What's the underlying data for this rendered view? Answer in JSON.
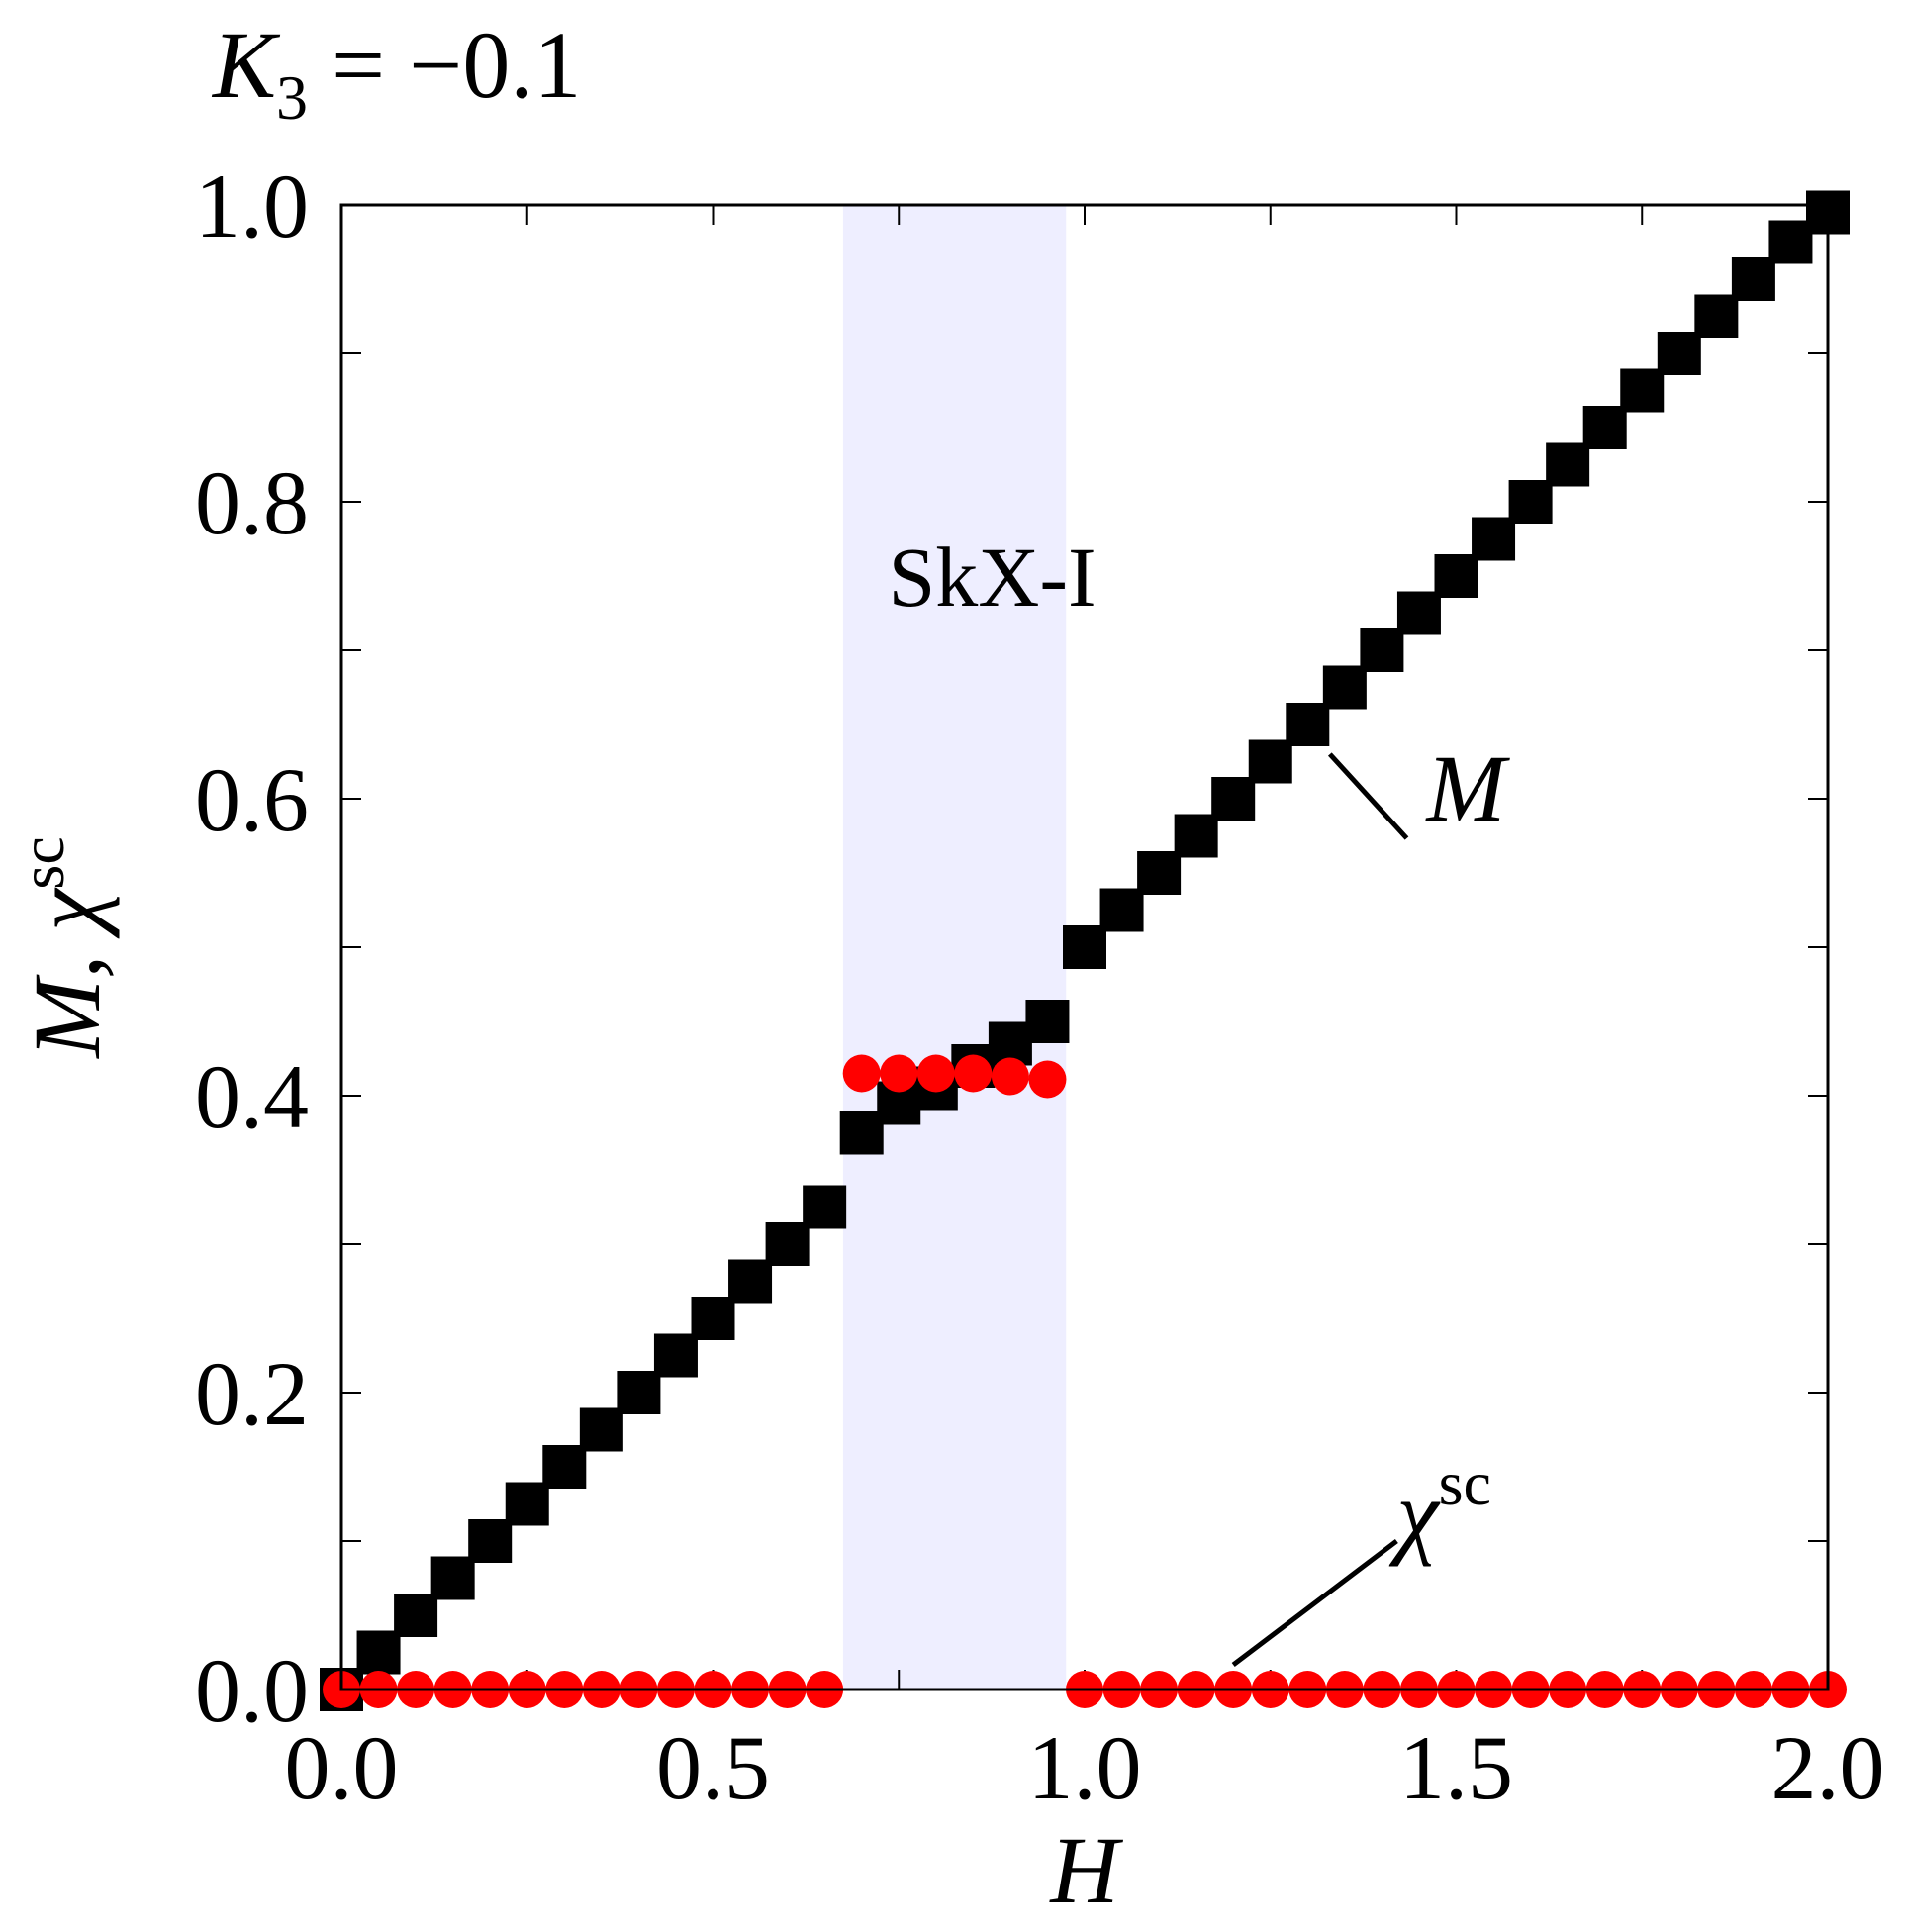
{
  "header": {
    "param_symbol": "K",
    "param_sub": "3",
    "param_eq": " = −0.1"
  },
  "chart_data": {
    "type": "scatter",
    "xlabel": "H",
    "ylabel": {
      "main": "M, χ",
      "sup": "sc"
    },
    "xlim": [
      0.0,
      2.0
    ],
    "ylim": [
      0.0,
      1.0
    ],
    "xticks": [
      "0.0",
      "0.5",
      "1.0",
      "1.5",
      "2.0"
    ],
    "yticks": [
      "0.0",
      "0.2",
      "0.4",
      "0.6",
      "0.8",
      "1.0"
    ],
    "grid": false,
    "region": {
      "label": "SkX-I",
      "x0": 0.675,
      "x1": 0.975,
      "color": "#eeeeff"
    },
    "series": [
      {
        "name": "M",
        "marker": "square",
        "color": "#000000",
        "x": [
          0.0,
          0.05,
          0.1,
          0.15,
          0.2,
          0.25,
          0.3,
          0.35,
          0.4,
          0.45,
          0.5,
          0.55,
          0.6,
          0.65,
          0.7,
          0.75,
          0.8,
          0.85,
          0.9,
          0.95,
          1.0,
          1.05,
          1.1,
          1.15,
          1.2,
          1.25,
          1.3,
          1.35,
          1.4,
          1.45,
          1.5,
          1.55,
          1.6,
          1.65,
          1.7,
          1.75,
          1.8,
          1.85,
          1.9,
          1.95,
          2.0
        ],
        "y": [
          0.0,
          0.025,
          0.05,
          0.075,
          0.1,
          0.125,
          0.15,
          0.175,
          0.2,
          0.225,
          0.25,
          0.275,
          0.3,
          0.325,
          0.375,
          0.395,
          0.405,
          0.42,
          0.435,
          0.45,
          0.5,
          0.525,
          0.55,
          0.575,
          0.6,
          0.625,
          0.65,
          0.675,
          0.7,
          0.725,
          0.75,
          0.775,
          0.8,
          0.825,
          0.85,
          0.875,
          0.9,
          0.925,
          0.95,
          0.975,
          0.995
        ]
      },
      {
        "name": "χ",
        "name_sup": "sc",
        "marker": "circle",
        "color": "#ff0000",
        "x": [
          0.0,
          0.05,
          0.1,
          0.15,
          0.2,
          0.25,
          0.3,
          0.35,
          0.4,
          0.45,
          0.5,
          0.55,
          0.6,
          0.65,
          0.7,
          0.75,
          0.8,
          0.85,
          0.9,
          0.95,
          1.0,
          1.05,
          1.1,
          1.15,
          1.2,
          1.25,
          1.3,
          1.35,
          1.4,
          1.45,
          1.5,
          1.55,
          1.6,
          1.65,
          1.7,
          1.75,
          1.8,
          1.85,
          1.9,
          1.95,
          2.0
        ],
        "y": [
          0,
          0,
          0,
          0,
          0,
          0,
          0,
          0,
          0,
          0,
          0,
          0,
          0,
          0,
          0.415,
          0.415,
          0.415,
          0.415,
          0.413,
          0.411,
          0,
          0,
          0,
          0,
          0,
          0,
          0,
          0,
          0,
          0,
          0,
          0,
          0,
          0,
          0,
          0,
          0,
          0,
          0,
          0,
          0
        ]
      }
    ],
    "annotations": [
      {
        "series": 0,
        "text": "M",
        "anchor_xy": [
          1.33,
          0.63
        ],
        "text_xy": [
          1.5,
          0.58
        ]
      },
      {
        "series": 1,
        "text": "χ",
        "sup": "sc",
        "anchor_xy": [
          1.2,
          0.02
        ],
        "text_xy": [
          1.38,
          0.09
        ]
      }
    ]
  }
}
